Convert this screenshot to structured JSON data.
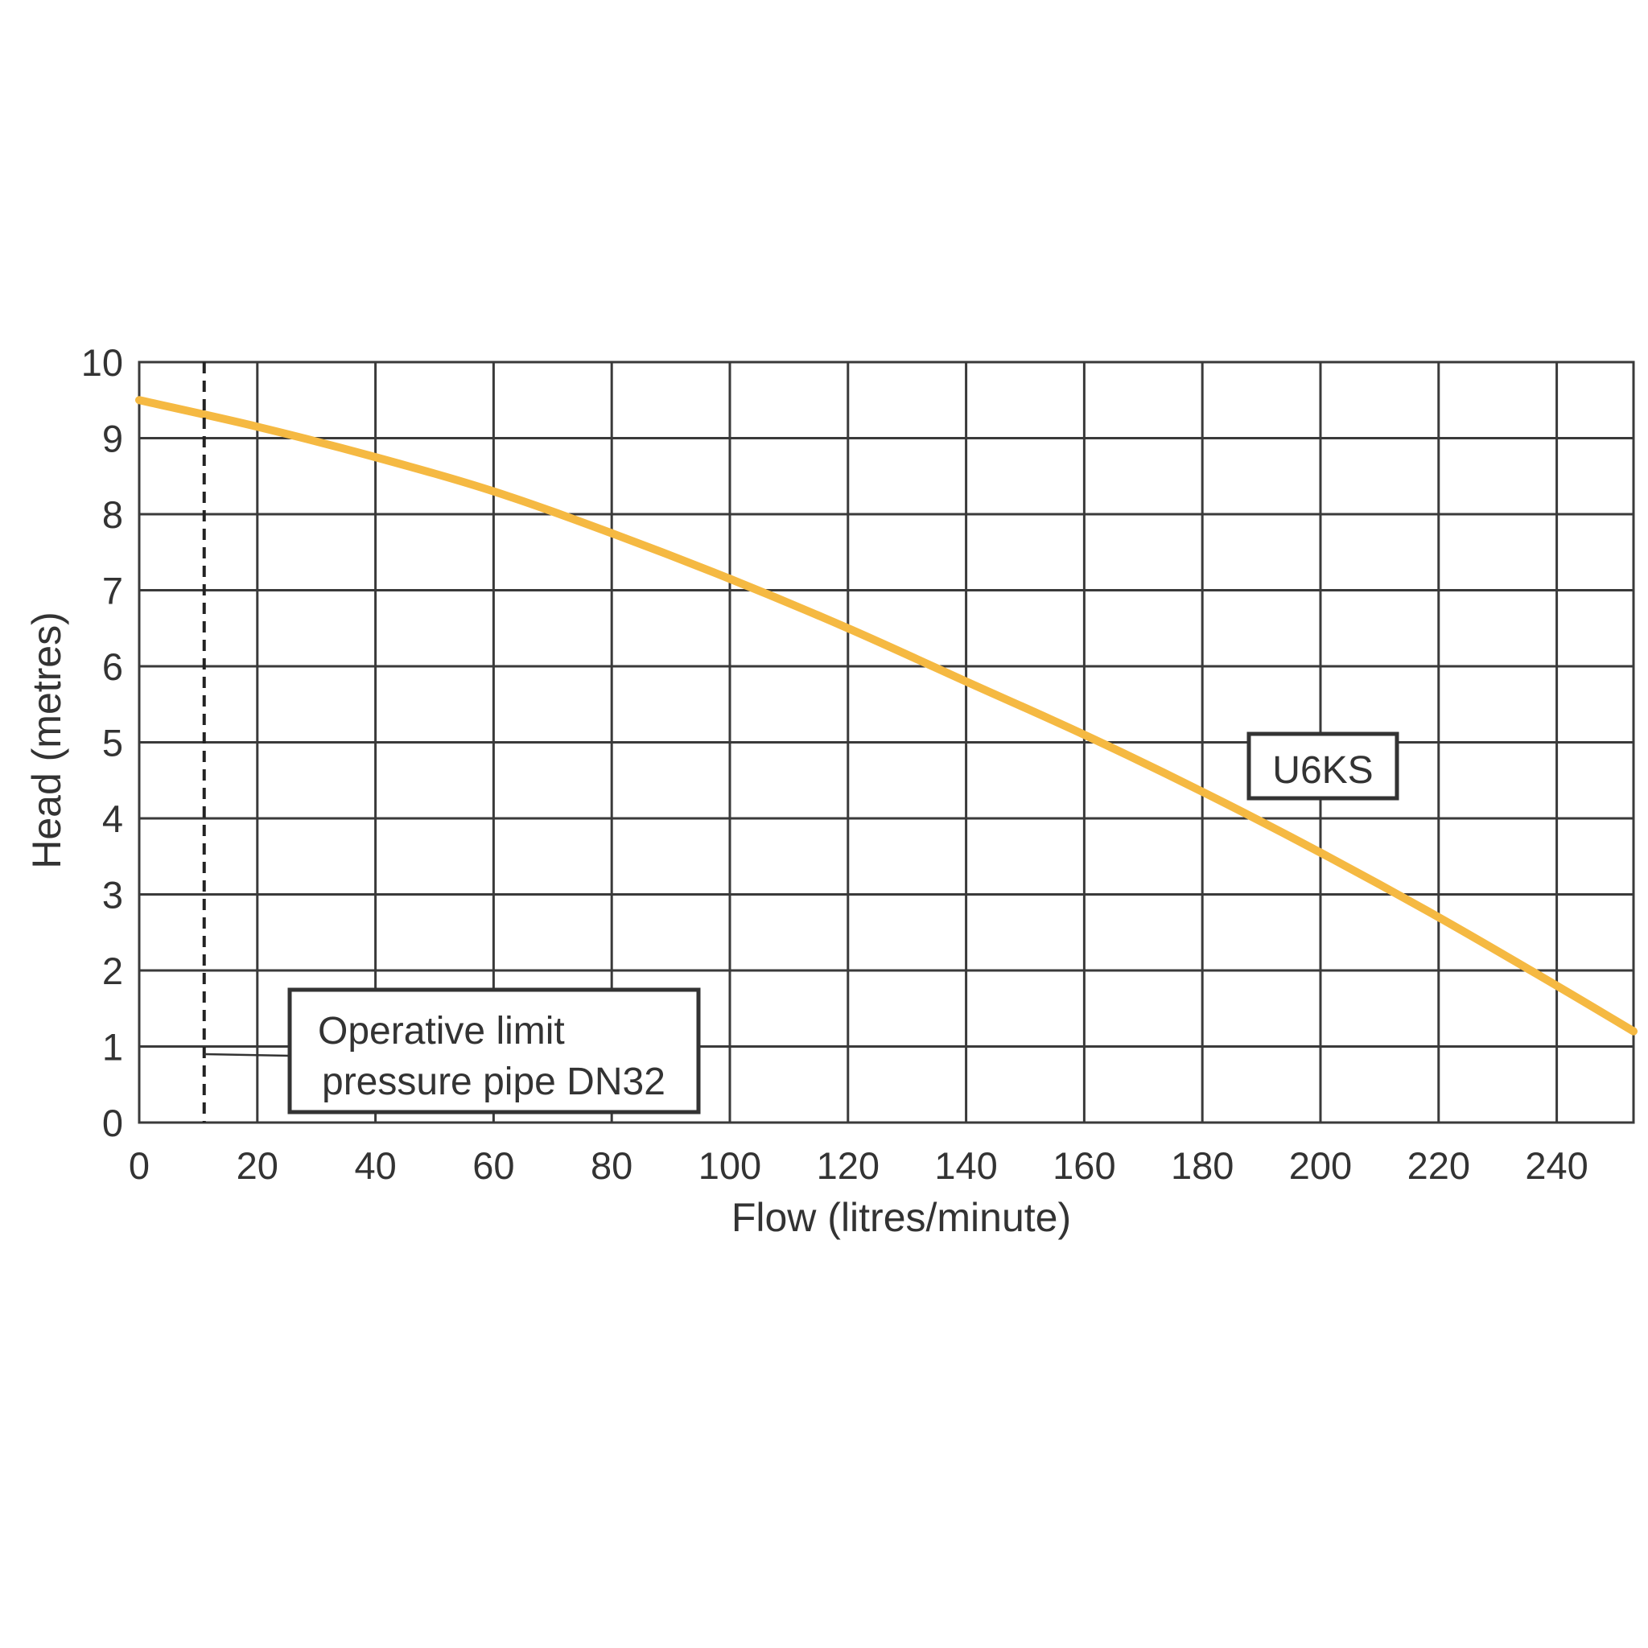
{
  "chart_data": {
    "type": "line",
    "title": "",
    "xlabel": "Flow (litres/minute)",
    "ylabel": "Head (metres)",
    "xlim": [
      0,
      253
    ],
    "ylim": [
      0,
      10
    ],
    "x_ticks": [
      0,
      20,
      40,
      60,
      80,
      100,
      120,
      140,
      160,
      180,
      200,
      220,
      240
    ],
    "y_ticks": [
      0,
      1,
      2,
      3,
      4,
      5,
      6,
      7,
      8,
      9,
      10
    ],
    "grid": true,
    "series": [
      {
        "name": "U6KS",
        "color": "#f5b942",
        "x": [
          0,
          20,
          40,
          60,
          80,
          100,
          120,
          140,
          160,
          180,
          200,
          220,
          240,
          253
        ],
        "y": [
          9.5,
          9.15,
          8.75,
          8.3,
          7.75,
          7.15,
          6.5,
          5.8,
          5.1,
          4.35,
          3.55,
          2.7,
          1.8,
          1.2
        ]
      }
    ],
    "operative_limit": {
      "x": 11,
      "label_line1": "Operative limit",
      "label_line2": "pressure pipe DN32"
    }
  }
}
